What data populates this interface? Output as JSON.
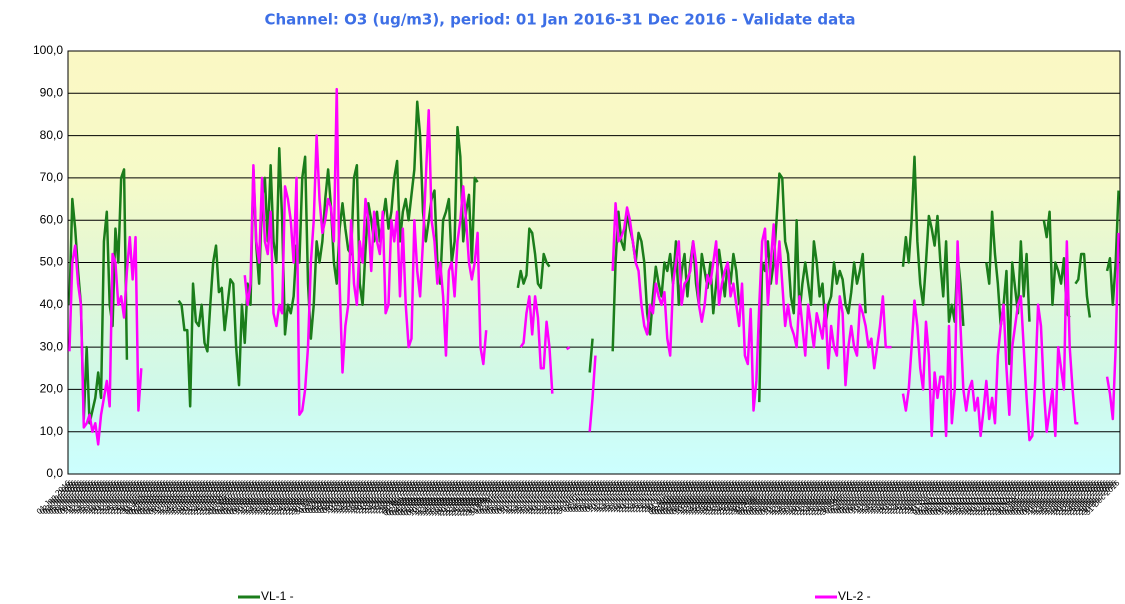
{
  "chart_data": {
    "type": "line",
    "title": "Channel: O3 (ug/m3), period: 01 Jan 2016-31 Dec 2016 - Validate data",
    "categories": [
      "01 Jan 2016",
      "02 Jan 2016",
      "03 Jan 2016",
      "04 Jan 2016",
      "05 Jan 2016",
      "06 Jan 2016",
      "07 Jan 2016",
      "08 Jan 2016",
      "09 Jan 2016",
      "10 Jan 2016",
      "11 Jan 2016",
      "12 Jan 2016",
      "13 Jan 2016",
      "14 Jan 2016",
      "15 Jan 2016",
      "16 Jan 2016",
      "17 Jan 2016",
      "18 Jan 2016",
      "19 Jan 2016",
      "20 Jan 2016",
      "21 Jan 2016",
      "22 Jan 2016",
      "23 Jan 2016",
      "24 Jan 2016",
      "25 Jan 2016",
      "26 Jan 2016",
      "27 Jan 2016",
      "28 Jan 2016",
      "29 Jan 2016",
      "30 Jan 2016",
      "31 Jan 2016",
      "01 Feb 2016",
      "02 Feb 2016",
      "03 Feb 2016",
      "04 Feb 2016",
      "05 Feb 2016",
      "06 Feb 2016",
      "07 Feb 2016",
      "08 Feb 2016",
      "09 Feb 2016",
      "10 Feb 2016",
      "11 Feb 2016",
      "12 Feb 2016",
      "13 Feb 2016",
      "14 Feb 2016",
      "15 Feb 2016",
      "16 Feb 2016",
      "17 Feb 2016",
      "18 Feb 2016",
      "19 Feb 2016",
      "20 Feb 2016",
      "21 Feb 2016",
      "22 Feb 2016",
      "23 Feb 2016",
      "24 Feb 2016",
      "25 Feb 2016",
      "26 Feb 2016",
      "27 Feb 2016",
      "28 Feb 2016",
      "29 Feb 2016",
      "01 Mar 2016",
      "02 Mar 2016",
      "03 Mar 2016",
      "04 Mar 2016",
      "05 Mar 2016",
      "06 Mar 2016",
      "07 Mar 2016",
      "08 Mar 2016",
      "09 Mar 2016",
      "10 Mar 2016",
      "11 Mar 2016",
      "12 Mar 2016",
      "13 Mar 2016",
      "14 Mar 2016",
      "15 Mar 2016",
      "16 Mar 2016",
      "17 Mar 2016",
      "18 Mar 2016",
      "19 Mar 2016",
      "20 Mar 2016",
      "21 Mar 2016",
      "22 Mar 2016",
      "23 Mar 2016",
      "24 Mar 2016",
      "25 Mar 2016",
      "26 Mar 2016",
      "27 Mar 2016",
      "28 Mar 2016",
      "29 Mar 2016",
      "30 Mar 2016",
      "31 Mar 2016",
      "01 Apr 2016",
      "02 Apr 2016",
      "03 Apr 2016",
      "04 Apr 2016",
      "05 Apr 2016",
      "06 Apr 2016",
      "07 Apr 2016",
      "08 Apr 2016",
      "09 Apr 2016",
      "10 Apr 2016",
      "11 Apr 2016",
      "12 Apr 2016",
      "13 Apr 2016",
      "14 Apr 2016",
      "15 Apr 2016",
      "16 Apr 2016",
      "17 Apr 2016",
      "18 Apr 2016",
      "19 Apr 2016",
      "20 Apr 2016",
      "21 Apr 2016",
      "22 Apr 2016",
      "23 Apr 2016",
      "24 Apr 2016",
      "25 Apr 2016",
      "26 Apr 2016",
      "27 Apr 2016",
      "28 Apr 2016",
      "29 Apr 2016",
      "30 Apr 2016",
      "01 May 2016",
      "02 May 2016",
      "03 May 2016",
      "04 May 2016",
      "05 May 2016",
      "06 May 2016",
      "07 May 2016",
      "08 May 2016",
      "09 May 2016",
      "10 May 2016",
      "11 May 2016",
      "12 May 2016",
      "13 May 2016",
      "14 May 2016",
      "15 May 2016",
      "16 May 2016",
      "17 May 2016",
      "18 May 2016",
      "19 May 2016",
      "20 May 2016",
      "21 May 2016",
      "22 May 2016",
      "23 May 2016",
      "24 May 2016",
      "25 May 2016",
      "26 May 2016",
      "27 May 2016",
      "28 May 2016",
      "29 May 2016",
      "30 May 2016",
      "31 May 2016",
      "01 Jun 2016",
      "02 Jun 2016",
      "03 Jun 2016",
      "04 Jun 2016",
      "05 Jun 2016",
      "06 Jun 2016",
      "07 Jun 2016",
      "08 Jun 2016",
      "09 Jun 2016",
      "10 Jun 2016",
      "11 Jun 2016",
      "12 Jun 2016",
      "13 Jun 2016",
      "14 Jun 2016",
      "15 Jun 2016",
      "16 Jun 2016",
      "17 Jun 2016",
      "18 Jun 2016",
      "19 Jun 2016",
      "20 Jun 2016",
      "21 Jun 2016",
      "22 Jun 2016",
      "23 Jun 2016",
      "24 Jun 2016",
      "25 Jun 2016",
      "26 Jun 2016",
      "27 Jun 2016",
      "28 Jun 2016",
      "29 Jun 2016",
      "30 Jun 2016",
      "01 Jul 2016",
      "02 Jul 2016",
      "03 Jul 2016",
      "04 Jul 2016",
      "05 Jul 2016",
      "06 Jul 2016",
      "07 Jul 2016",
      "08 Jul 2016",
      "09 Jul 2016",
      "10 Jul 2016",
      "11 Jul 2016",
      "12 Jul 2016",
      "13 Jul 2016",
      "14 Jul 2016",
      "15 Jul 2016",
      "16 Jul 2016",
      "17 Jul 2016",
      "18 Jul 2016",
      "19 Jul 2016",
      "20 Jul 2016",
      "21 Jul 2016",
      "22 Jul 2016",
      "23 Jul 2016",
      "24 Jul 2016",
      "25 Jul 2016",
      "26 Jul 2016",
      "27 Jul 2016",
      "28 Jul 2016",
      "29 Jul 2016",
      "30 Jul 2016",
      "31 Jul 2016",
      "01 Aug 2016",
      "02 Aug 2016",
      "03 Aug 2016",
      "04 Aug 2016",
      "05 Aug 2016",
      "06 Aug 2016",
      "07 Aug 2016",
      "08 Aug 2016",
      "09 Aug 2016",
      "10 Aug 2016",
      "11 Aug 2016",
      "12 Aug 2016",
      "13 Aug 2016",
      "14 Aug 2016",
      "15 Aug 2016",
      "16 Aug 2016",
      "17 Aug 2016",
      "18 Aug 2016",
      "19 Aug 2016",
      "20 Aug 2016",
      "21 Aug 2016",
      "22 Aug 2016",
      "23 Aug 2016",
      "24 Aug 2016",
      "25 Aug 2016",
      "26 Aug 2016",
      "27 Aug 2016",
      "28 Aug 2016",
      "29 Aug 2016",
      "30 Aug 2016",
      "31 Aug 2016",
      "01 Sep 2016",
      "02 Sep 2016",
      "03 Sep 2016",
      "04 Sep 2016",
      "05 Sep 2016",
      "06 Sep 2016",
      "07 Sep 2016",
      "08 Sep 2016",
      "09 Sep 2016",
      "10 Sep 2016",
      "11 Sep 2016",
      "12 Sep 2016",
      "13 Sep 2016",
      "14 Sep 2016",
      "15 Sep 2016",
      "16 Sep 2016",
      "17 Sep 2016",
      "18 Sep 2016",
      "19 Sep 2016",
      "20 Sep 2016",
      "21 Sep 2016",
      "22 Sep 2016",
      "23 Sep 2016",
      "24 Sep 2016",
      "25 Sep 2016",
      "26 Sep 2016",
      "27 Sep 2016",
      "28 Sep 2016",
      "29 Sep 2016",
      "30 Sep 2016",
      "01 Oct 2016",
      "02 Oct 2016",
      "03 Oct 2016",
      "04 Oct 2016",
      "05 Oct 2016",
      "06 Oct 2016",
      "07 Oct 2016",
      "08 Oct 2016",
      "09 Oct 2016",
      "10 Oct 2016",
      "11 Oct 2016",
      "12 Oct 2016",
      "13 Oct 2016",
      "14 Oct 2016",
      "15 Oct 2016",
      "16 Oct 2016",
      "17 Oct 2016",
      "18 Oct 2016",
      "19 Oct 2016",
      "20 Oct 2016",
      "21 Oct 2016",
      "22 Oct 2016",
      "23 Oct 2016",
      "24 Oct 2016",
      "25 Oct 2016",
      "26 Oct 2016",
      "27 Oct 2016",
      "28 Oct 2016",
      "29 Oct 2016",
      "30 Oct 2016",
      "31 Oct 2016",
      "01 Nov 2016",
      "02 Nov 2016",
      "03 Nov 2016",
      "04 Nov 2016",
      "05 Nov 2016",
      "06 Nov 2016",
      "07 Nov 2016",
      "08 Nov 2016",
      "09 Nov 2016",
      "10 Nov 2016",
      "11 Nov 2016",
      "12 Nov 2016",
      "13 Nov 2016",
      "14 Nov 2016",
      "15 Nov 2016",
      "16 Nov 2016",
      "17 Nov 2016",
      "18 Nov 2016",
      "19 Nov 2016",
      "20 Nov 2016",
      "21 Nov 2016",
      "22 Nov 2016",
      "23 Nov 2016",
      "24 Nov 2016",
      "25 Nov 2016",
      "26 Nov 2016",
      "27 Nov 2016",
      "28 Nov 2016",
      "29 Nov 2016",
      "30 Nov 2016",
      "01 Dec 2016",
      "02 Dec 2016",
      "03 Dec 2016",
      "04 Dec 2016",
      "05 Dec 2016",
      "06 Dec 2016",
      "07 Dec 2016",
      "08 Dec 2016",
      "09 Dec 2016",
      "10 Dec 2016",
      "11 Dec 2016",
      "12 Dec 2016",
      "13 Dec 2016",
      "14 Dec 2016",
      "15 Dec 2016",
      "16 Dec 2016",
      "17 Dec 2016",
      "18 Dec 2016",
      "19 Dec 2016",
      "20 Dec 2016",
      "21 Dec 2016",
      "22 Dec 2016",
      "23 Dec 2016",
      "24 Dec 2016",
      "25 Dec 2016",
      "26 Dec 2016",
      "27 Dec 2016",
      "28 Dec 2016",
      "29 Dec 2016",
      "30 Dec 2016",
      "31 Dec 2016"
    ],
    "series": [
      {
        "name": "VL-1 -",
        "color": "#1b7d1b",
        "values": [
          40,
          65,
          58,
          48,
          40,
          13,
          30,
          12,
          15,
          18,
          24,
          18,
          55,
          62,
          40,
          35,
          58,
          50,
          70,
          72,
          27,
          null,
          null,
          null,
          null,
          null,
          null,
          null,
          null,
          null,
          null,
          null,
          null,
          null,
          null,
          null,
          null,
          null,
          41,
          40,
          34,
          34,
          16,
          45,
          36,
          35,
          40,
          31,
          29,
          40,
          50,
          54,
          43,
          44,
          34,
          40,
          46,
          45,
          30,
          21,
          40,
          31,
          45,
          40,
          72,
          54,
          45,
          65,
          70,
          55,
          73,
          55,
          50,
          77,
          60,
          33,
          40,
          38,
          42,
          54,
          50,
          70,
          75,
          45,
          32,
          40,
          55,
          50,
          55,
          65,
          72,
          63,
          50,
          45,
          58,
          64,
          58,
          53,
          52,
          70,
          73,
          45,
          40,
          53,
          64,
          60,
          55,
          62,
          55,
          60,
          65,
          58,
          62,
          70,
          74,
          55,
          62,
          65,
          60,
          66,
          72,
          88,
          80,
          62,
          55,
          60,
          65,
          67,
          50,
          45,
          60,
          62,
          65,
          50,
          55,
          82,
          75,
          55,
          62,
          66,
          50,
          70,
          69,
          null,
          null,
          null,
          null,
          null,
          null,
          null,
          null,
          null,
          null,
          null,
          null,
          null,
          44,
          48,
          45,
          47,
          58,
          57,
          52,
          45,
          44,
          52,
          50,
          49,
          null,
          null,
          null,
          null,
          null,
          null,
          null,
          null,
          null,
          null,
          null,
          null,
          null,
          24,
          32,
          null,
          null,
          null,
          null,
          null,
          null,
          29,
          50,
          62,
          55,
          53,
          62,
          58,
          55,
          50,
          57,
          55,
          50,
          38,
          33,
          42,
          49,
          45,
          42,
          50,
          48,
          52,
          45,
          55,
          40,
          48,
          52,
          42,
          50,
          55,
          45,
          40,
          52,
          48,
          44,
          50,
          38,
          45,
          53,
          48,
          42,
          50,
          45,
          52,
          48,
          40,
          null,
          null,
          null,
          null,
          null,
          null,
          17,
          50,
          48,
          55,
          45,
          50,
          60,
          71,
          70,
          55,
          52,
          42,
          38,
          60,
          38,
          45,
          50,
          45,
          40,
          55,
          50,
          42,
          45,
          35,
          40,
          42,
          50,
          45,
          48,
          46,
          40,
          38,
          43,
          50,
          45,
          48,
          52,
          38,
          null,
          null,
          null,
          null,
          null,
          null,
          null,
          null,
          null,
          null,
          null,
          null,
          49,
          56,
          50,
          60,
          75,
          55,
          45,
          40,
          50,
          61,
          58,
          54,
          61,
          50,
          42,
          55,
          36,
          40,
          36,
          52,
          45,
          35,
          null,
          null,
          null,
          null,
          null,
          null,
          null,
          50,
          45,
          62,
          52,
          45,
          35,
          40,
          48,
          26,
          50,
          44,
          38,
          55,
          42,
          52,
          36,
          null,
          null,
          null,
          null,
          60,
          56,
          62,
          40,
          50,
          48,
          45,
          51,
          38,
          37,
          null,
          45,
          46,
          52,
          52,
          42,
          37,
          null,
          null,
          null,
          null,
          null,
          48,
          51,
          40,
          50,
          67
        ]
      },
      {
        "name": "VL-2 -",
        "color": "#ff00ff",
        "values": [
          29,
          50,
          54,
          45,
          40,
          11,
          12,
          14,
          10,
          12,
          7,
          14,
          18,
          22,
          16,
          52,
          50,
          40,
          42,
          37,
          48,
          56,
          46,
          56,
          15,
          25,
          null,
          null,
          null,
          null,
          null,
          null,
          null,
          null,
          null,
          null,
          null,
          null,
          null,
          null,
          null,
          null,
          null,
          null,
          null,
          null,
          null,
          null,
          null,
          null,
          null,
          null,
          null,
          null,
          null,
          null,
          null,
          null,
          null,
          null,
          null,
          47,
          40,
          45,
          73,
          55,
          50,
          70,
          55,
          52,
          62,
          38,
          35,
          40,
          38,
          68,
          65,
          60,
          50,
          70,
          14,
          15,
          20,
          30,
          50,
          60,
          80,
          65,
          57,
          60,
          65,
          63,
          55,
          91,
          45,
          24,
          35,
          40,
          60,
          45,
          40,
          55,
          50,
          65,
          60,
          48,
          62,
          55,
          52,
          62,
          38,
          40,
          60,
          55,
          62,
          42,
          58,
          40,
          30,
          32,
          60,
          48,
          42,
          55,
          70,
          86,
          60,
          55,
          45,
          50,
          42,
          28,
          48,
          50,
          42,
          55,
          60,
          68,
          60,
          50,
          46,
          50,
          57,
          30,
          26,
          34,
          null,
          null,
          null,
          null,
          null,
          null,
          null,
          null,
          null,
          null,
          null,
          30,
          31,
          38,
          42,
          33,
          42,
          37,
          25,
          25,
          36,
          30,
          19,
          null,
          null,
          null,
          null,
          29.5,
          30,
          null,
          null,
          null,
          null,
          null,
          null,
          10,
          18,
          28,
          null,
          null,
          null,
          null,
          null,
          48,
          64,
          55,
          56,
          58,
          63,
          60,
          55,
          50,
          48,
          40,
          35,
          33,
          40,
          38,
          45,
          42,
          40,
          43,
          32,
          28,
          45,
          50,
          55,
          40,
          45,
          46,
          48,
          55,
          50,
          40,
          36,
          40,
          47,
          45,
          50,
          55,
          40,
          45,
          48,
          50,
          42,
          45,
          40,
          35,
          45,
          28,
          26,
          39,
          15,
          22,
          40,
          55,
          58,
          40,
          50,
          59,
          45,
          55,
          45,
          35,
          40,
          35,
          33,
          30,
          42,
          35,
          28,
          40,
          35,
          30,
          38,
          35,
          32,
          40,
          25,
          35,
          30,
          28,
          42,
          38,
          21,
          30,
          35,
          30,
          28,
          40,
          38,
          35,
          30,
          32,
          25,
          30,
          35,
          42,
          30,
          30,
          30,
          null,
          null,
          null,
          19,
          15,
          20,
          30,
          41,
          35,
          25,
          20,
          36,
          28,
          9,
          24,
          18,
          23,
          23,
          9,
          35,
          12,
          20,
          55,
          35,
          20,
          15,
          20,
          22,
          15,
          18,
          9,
          15,
          22,
          13,
          18,
          12,
          28,
          35,
          40,
          25,
          14,
          30,
          35,
          40,
          42,
          30,
          18,
          8,
          9,
          22,
          40,
          35,
          20,
          10,
          15,
          20,
          9,
          30,
          25,
          20,
          55,
          30,
          20,
          12,
          12,
          null,
          null,
          null,
          null,
          null,
          null,
          null,
          null,
          null,
          23,
          19,
          13,
          30,
          57
        ]
      }
    ],
    "ylim": [
      0,
      100
    ],
    "yticks": [
      {
        "value": 0,
        "label": "0,0"
      },
      {
        "value": 10,
        "label": "10,0"
      },
      {
        "value": 20,
        "label": "20,0"
      },
      {
        "value": 30,
        "label": "30,0"
      },
      {
        "value": 40,
        "label": "40,0"
      },
      {
        "value": 50,
        "label": "50,0"
      },
      {
        "value": 60,
        "label": "60,0"
      },
      {
        "value": 70,
        "label": "70,0"
      },
      {
        "value": 80,
        "label": "80,0"
      },
      {
        "value": 90,
        "label": "90,0"
      },
      {
        "value": 100,
        "label": "100,0"
      }
    ],
    "grid": true,
    "legend": "bottom"
  }
}
